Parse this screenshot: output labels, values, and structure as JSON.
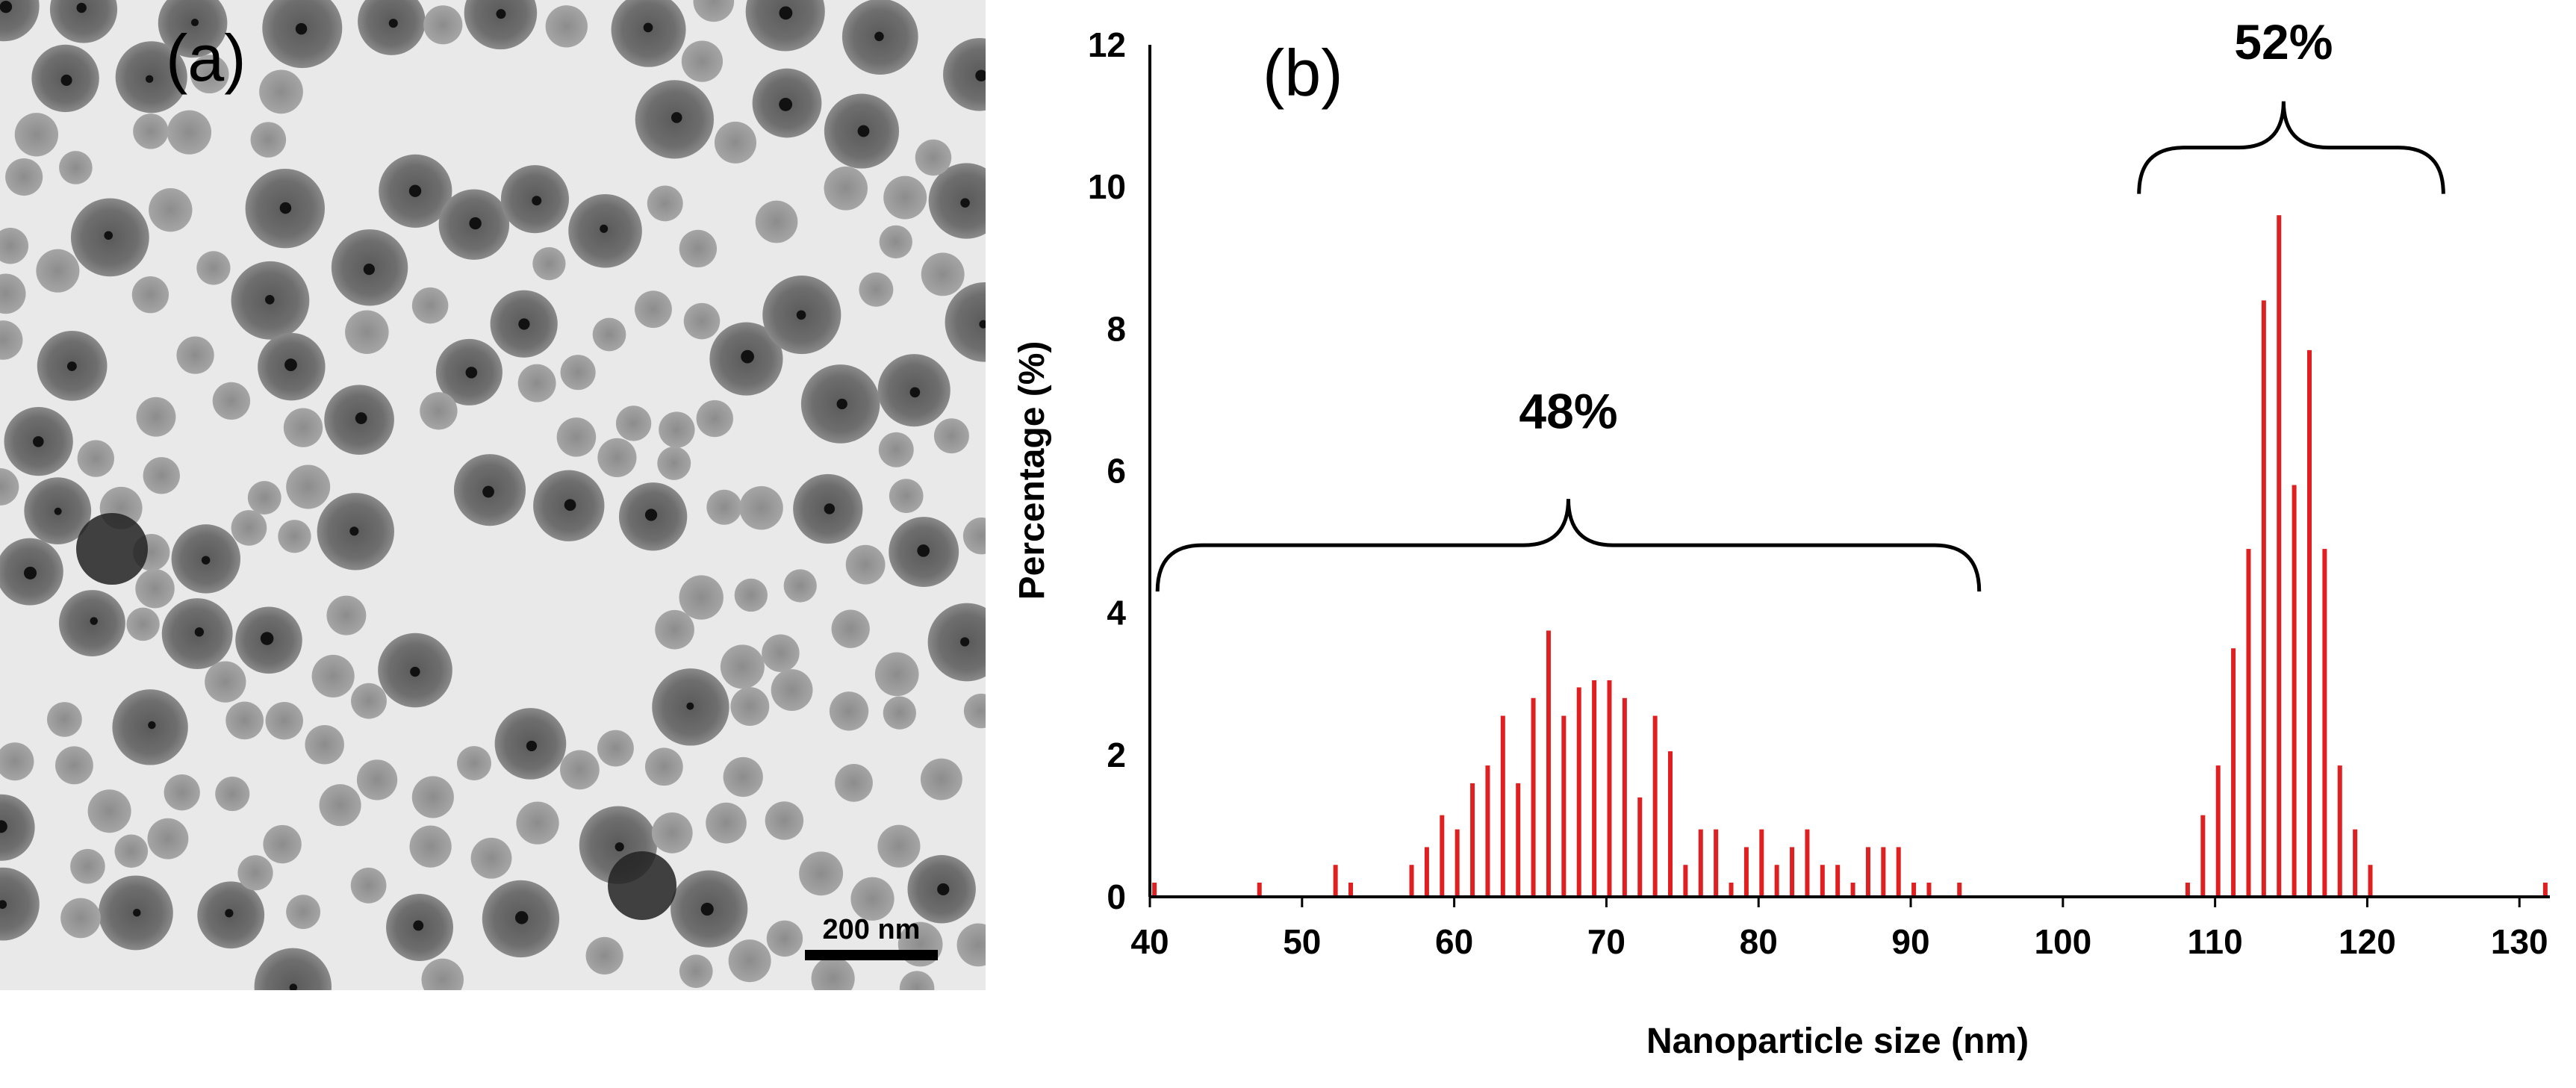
{
  "panel_a": {
    "label": "(a)",
    "scale_bar_label": "200 nm",
    "image_description_icon": "tem-micrograph-icon"
  },
  "colors": {
    "bar": "#e02020",
    "axis": "#000000",
    "tem_background": "#e9e9e9",
    "particle_shell": "#7a7a7a",
    "particle_core": "#111111"
  },
  "chart_data": {
    "type": "bar",
    "panel_label": "(b)",
    "title": "",
    "xlabel": "Nanoparticle size (nm)",
    "ylabel": "Percentage (%)",
    "xlim": [
      40,
      132
    ],
    "ylim": [
      0,
      12
    ],
    "x_ticks": [
      40,
      50,
      60,
      70,
      80,
      90,
      100,
      110,
      120,
      130
    ],
    "y_ticks": [
      0,
      2,
      4,
      6,
      8,
      10,
      12
    ],
    "grid": false,
    "x": [
      40.3,
      47.2,
      52.2,
      53.2,
      57.2,
      58.2,
      59.2,
      60.2,
      61.2,
      62.2,
      63.2,
      64.2,
      65.2,
      66.2,
      67.2,
      68.2,
      69.2,
      70.2,
      71.2,
      72.2,
      73.2,
      74.2,
      75.2,
      76.2,
      77.2,
      78.2,
      79.2,
      80.2,
      81.2,
      82.2,
      83.2,
      84.2,
      85.2,
      86.2,
      87.2,
      88.2,
      89.2,
      90.2,
      91.2,
      93.2,
      108.2,
      109.2,
      110.2,
      111.2,
      112.2,
      113.2,
      114.2,
      115.2,
      116.2,
      117.2,
      118.2,
      119.2,
      120.2,
      131.7
    ],
    "values": [
      0.2,
      0.2,
      0.45,
      0.2,
      0.45,
      0.7,
      1.15,
      0.95,
      1.6,
      1.85,
      2.55,
      1.6,
      2.8,
      3.75,
      2.55,
      2.95,
      3.05,
      3.05,
      2.8,
      1.4,
      2.55,
      2.05,
      0.45,
      0.95,
      0.95,
      0.2,
      0.7,
      0.95,
      0.45,
      0.7,
      0.95,
      0.45,
      0.45,
      0.2,
      0.7,
      0.7,
      0.7,
      0.2,
      0.2,
      0.2,
      0.2,
      1.15,
      1.85,
      3.5,
      4.9,
      8.4,
      9.6,
      5.8,
      7.7,
      4.9,
      1.85,
      0.95,
      0.45,
      0.2
    ],
    "annotations": [
      {
        "text": "48%",
        "x": 67.5,
        "y": 6.6,
        "bracket_from": 40.5,
        "bracket_to": 94.5
      },
      {
        "text": "52%",
        "x": 114.5,
        "y": 11.8,
        "bracket_from": 105,
        "bracket_to": 125
      }
    ]
  }
}
